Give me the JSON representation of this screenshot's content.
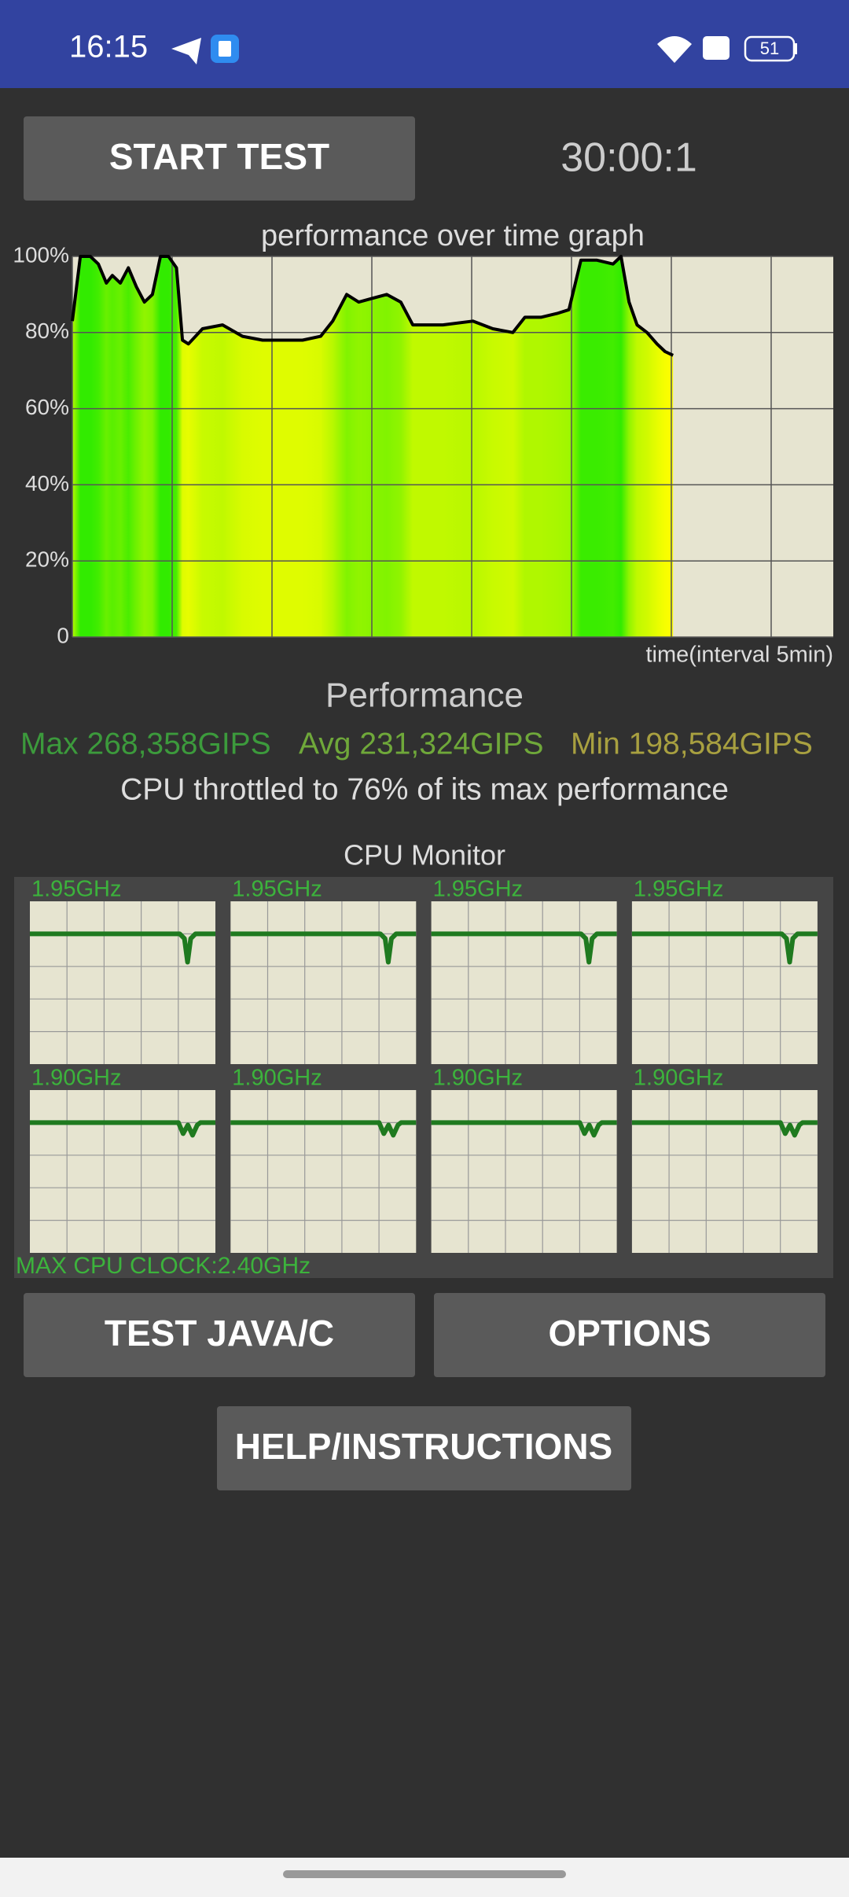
{
  "status_bar": {
    "time": "16:15",
    "battery": "51"
  },
  "start_button": "START TEST",
  "timer": "30:00:1",
  "chart_data": {
    "type": "line",
    "title": "performance over time graph",
    "x_label": "time(interval 5min)",
    "x": [
      0,
      0.4,
      0.9,
      1.3,
      1.7,
      2.0,
      2.4,
      2.8,
      3.2,
      3.6,
      4.0,
      4.4,
      4.8,
      5.2,
      5.5,
      5.8,
      6.5,
      7.5,
      8.5,
      9.5,
      10.5,
      11.5,
      12.4,
      13.0,
      13.7,
      14.3,
      15.0,
      15.7,
      16.4,
      17.0,
      18.5,
      20.0,
      21.0,
      22.0,
      22.6,
      23.4,
      24.2,
      24.8,
      25.4,
      26.2,
      27.0,
      27.4,
      27.8,
      28.2,
      28.7,
      29.2,
      29.6,
      30.0
    ],
    "series": [
      {
        "color": "#000000",
        "values": [
          83,
          100,
          100,
          98,
          93,
          95,
          93,
          97,
          92,
          88,
          90,
          100,
          100,
          97,
          78,
          77,
          81,
          82,
          79,
          78,
          78,
          78,
          79,
          83,
          90,
          88,
          89,
          90,
          88,
          82,
          82,
          83,
          81,
          80,
          84,
          84,
          85,
          86,
          99,
          99,
          98,
          100,
          88,
          82,
          80,
          77,
          75,
          74
        ]
      }
    ],
    "xlim": [
      0,
      38
    ],
    "ylim": [
      0,
      100
    ],
    "yticks": [
      0,
      {
        "value": 20,
        "label": "20%"
      },
      {
        "value": 40,
        "label": "40%"
      },
      {
        "value": 60,
        "label": "60%"
      },
      {
        "value": 80,
        "label": "80%"
      },
      {
        "value": 100,
        "label": "100%"
      }
    ],
    "grid": true
  },
  "performance": {
    "title": "Performance",
    "max": "Max 268,358GIPS",
    "avg": "Avg 231,324GIPS",
    "min": "Min 198,584GIPS",
    "throttle": "CPU throttled to 76% of its max performance"
  },
  "cpu_monitor": {
    "title": "CPU Monitor",
    "cores": [
      "1.95GHz",
      "1.95GHz",
      "1.95GHz",
      "1.95GHz",
      "1.90GHz",
      "1.90GHz",
      "1.90GHz",
      "1.90GHz"
    ],
    "max_clock": "MAX CPU CLOCK:2.40GHz"
  },
  "buttons": {
    "test": "TEST JAVA/C",
    "options": "OPTIONS",
    "help": "HELP/INSTRUCTIONS"
  }
}
